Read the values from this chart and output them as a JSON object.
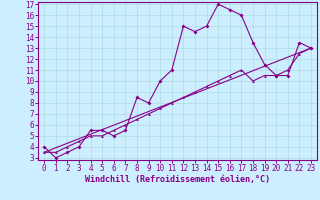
{
  "xlabel": "Windchill (Refroidissement éolien,°C)",
  "background_color": "#cceeff",
  "grid_color": "#aadddd",
  "line_color": "#880088",
  "xlim": [
    -0.5,
    23.5
  ],
  "ylim": [
    2.8,
    17.2
  ],
  "xticks": [
    0,
    1,
    2,
    3,
    4,
    5,
    6,
    7,
    8,
    9,
    10,
    11,
    12,
    13,
    14,
    15,
    16,
    17,
    18,
    19,
    20,
    21,
    22,
    23
  ],
  "yticks": [
    3,
    4,
    5,
    6,
    7,
    8,
    9,
    10,
    11,
    12,
    13,
    14,
    15,
    16,
    17
  ],
  "main_line_x": [
    0,
    1,
    2,
    3,
    4,
    5,
    6,
    7,
    8,
    9,
    10,
    11,
    12,
    13,
    14,
    15,
    16,
    17,
    18,
    19,
    20,
    21,
    22,
    23
  ],
  "main_line_y": [
    4.0,
    3.0,
    3.5,
    4.0,
    5.5,
    5.5,
    5.0,
    5.5,
    8.5,
    8.0,
    10.0,
    11.0,
    15.0,
    14.5,
    15.0,
    17.0,
    16.5,
    16.0,
    13.5,
    11.5,
    10.5,
    10.5,
    13.5,
    13.0
  ],
  "trend_line_x": [
    0,
    23
  ],
  "trend_line_y": [
    3.5,
    13.0
  ],
  "second_line_x": [
    0,
    1,
    2,
    3,
    4,
    5,
    6,
    7,
    8,
    9,
    10,
    11,
    12,
    13,
    14,
    15,
    16,
    17,
    18,
    19,
    20,
    21,
    22,
    23
  ],
  "second_line_y": [
    3.5,
    3.5,
    4.0,
    4.5,
    5.0,
    5.0,
    5.5,
    6.0,
    6.5,
    7.0,
    7.5,
    8.0,
    8.5,
    9.0,
    9.5,
    10.0,
    10.5,
    11.0,
    10.0,
    10.5,
    10.5,
    11.0,
    12.5,
    13.0
  ],
  "tick_fontsize": 5.5,
  "xlabel_fontsize": 6.0
}
